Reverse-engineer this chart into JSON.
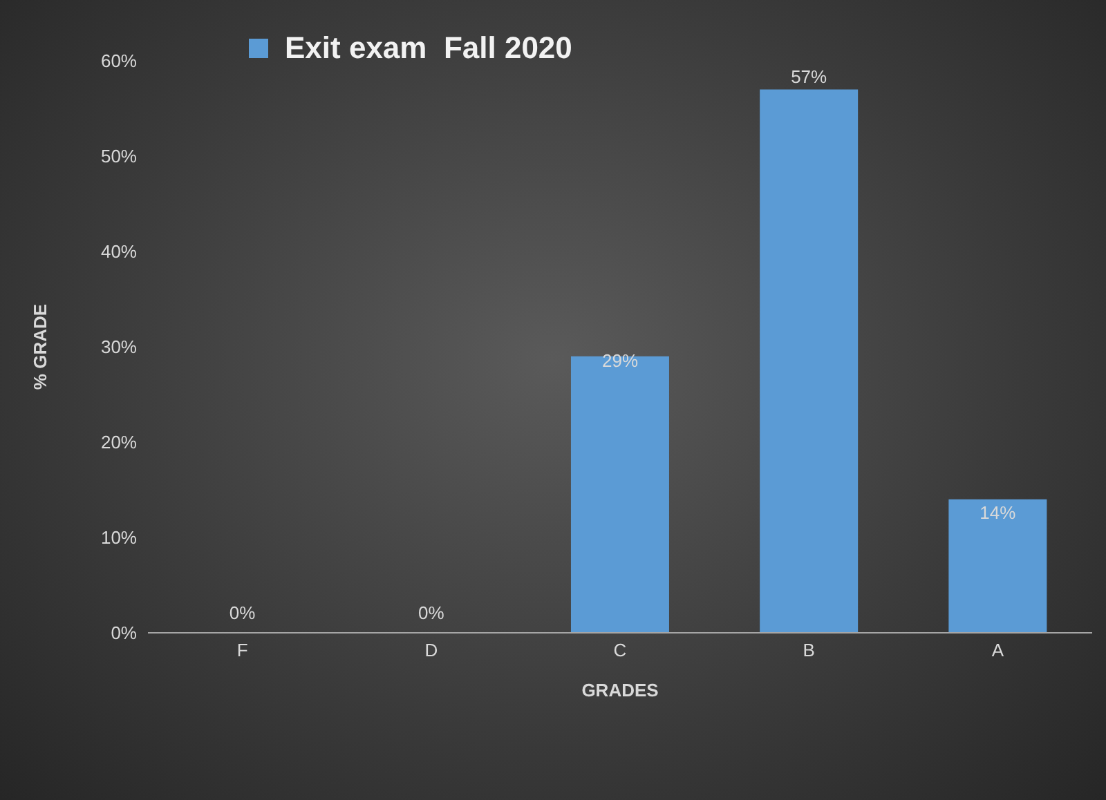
{
  "chart_data": {
    "type": "bar",
    "xlabel": "GRADES",
    "ylabel": "% GRADE",
    "categories": [
      "F",
      "D",
      "C",
      "B",
      "A"
    ],
    "series": [
      {
        "name": "Exit exam  Fall 2020",
        "color": "#5b9bd5",
        "values": [
          0,
          0,
          29,
          57,
          14
        ],
        "value_labels": [
          "0%",
          "0%",
          "29%",
          "57%",
          "14%"
        ]
      }
    ],
    "ylim": [
      0,
      60
    ],
    "yticks": [
      {
        "value": 0,
        "label": "0%"
      },
      {
        "value": 10,
        "label": "10%"
      },
      {
        "value": 20,
        "label": "20%"
      },
      {
        "value": 30,
        "label": "30%"
      },
      {
        "value": 40,
        "label": "40%"
      },
      {
        "value": 50,
        "label": "50%"
      },
      {
        "value": 60,
        "label": "60%"
      }
    ],
    "grid": false,
    "legend": "top left"
  }
}
